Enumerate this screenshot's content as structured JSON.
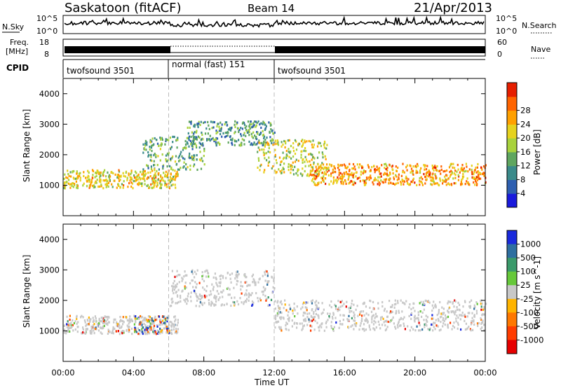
{
  "header": {
    "station": "Saskatoon (fitACF)",
    "beam": "Beam 14",
    "date": "21/Apr/2013"
  },
  "noise_panel": {
    "left_label": "N.Sky",
    "right_label": "N.Search",
    "left_ticks": [
      "10^5",
      "10^0"
    ],
    "right_ticks": [
      "10^5",
      "10^0"
    ]
  },
  "freq_panel": {
    "left_label_line1": "Freq.",
    "left_label_line2": "[MHz]",
    "left_ticks": [
      "18",
      "8"
    ],
    "right_label": "Nave",
    "right_ticks": [
      "60",
      "0"
    ]
  },
  "cpid_panel": {
    "label": "CPID",
    "segments": [
      {
        "name": "twofsound 3501",
        "start": 0,
        "end": 6
      },
      {
        "name": "normal (fast) 151",
        "start": 6,
        "end": 12
      },
      {
        "name": "twofsound 3501",
        "start": 12,
        "end": 24
      }
    ]
  },
  "chart_data": [
    {
      "type": "heatmap",
      "quantity": "Power",
      "xlabel": "Time UT",
      "ylabel": "Slant Range [km]",
      "xlim": [
        0,
        24
      ],
      "ylim": [
        0,
        4500
      ],
      "x_ticks": [
        "00:00",
        "04:00",
        "08:00",
        "12:00",
        "16:00",
        "20:00",
        "00:00"
      ],
      "y_ticks": [
        1000,
        2000,
        3000,
        4000
      ],
      "colorbar": {
        "label": "Power [dB]",
        "ticks": [
          "4",
          "8",
          "12",
          "16",
          "20",
          "24",
          "28"
        ],
        "colors": [
          "#1a1adc",
          "#2e5fb0",
          "#3a8a8a",
          "#5fa65f",
          "#a8d23c",
          "#e6d21e",
          "#ffa000",
          "#ff6400",
          "#e61e00"
        ]
      },
      "features": [
        {
          "name": "near-range band (00-06 UT)",
          "t_start": 0,
          "t_end": 6.5,
          "range_km": [
            900,
            1500
          ],
          "power_db": 20
        },
        {
          "name": "rising edge (05-08 UT)",
          "t_start": 4.5,
          "t_end": 8,
          "range_km": [
            1500,
            2600
          ],
          "power_db": 12
        },
        {
          "name": "far-range arc (07-12 UT)",
          "t_start": 7,
          "t_end": 12,
          "range_km": [
            2300,
            3100
          ],
          "power_db": 10
        },
        {
          "name": "descending edge (11-15 UT)",
          "t_start": 11,
          "t_end": 15,
          "range_km": [
            1300,
            2500
          ],
          "power_db": 18
        },
        {
          "name": "near-range band (14-24 UT)",
          "t_start": 14,
          "t_end": 24,
          "range_km": [
            1000,
            1700
          ],
          "power_db": 24
        }
      ]
    },
    {
      "type": "heatmap",
      "quantity": "Velocity",
      "xlabel": "Time UT",
      "ylabel": "Slant Range [km]",
      "xlim": [
        0,
        24
      ],
      "ylim": [
        0,
        4500
      ],
      "x_ticks": [
        "00:00",
        "04:00",
        "08:00",
        "12:00",
        "16:00",
        "20:00",
        "00:00"
      ],
      "y_ticks": [
        1000,
        2000,
        3000,
        4000
      ],
      "colorbar": {
        "label": "Velocity [m s^-1]",
        "ticks": [
          "1000",
          "500",
          "100",
          "25",
          "-25",
          "-100",
          "-500",
          "-1000"
        ],
        "colors": [
          "#1a2adc",
          "#2e6fa0",
          "#3a9a6a",
          "#66c83a",
          "#c8c8c8",
          "#ffb400",
          "#ff7800",
          "#ff3c00",
          "#e60000"
        ]
      },
      "features": [
        {
          "name": "ground scatter band (00-06 UT)",
          "t_start": 0,
          "t_end": 6.5,
          "range_km": [
            900,
            1500
          ],
          "velocity": 0
        },
        {
          "name": "mixed-velocity patch (04-06 UT)",
          "t_start": 4,
          "t_end": 6,
          "range_km": [
            900,
            1500
          ],
          "velocity": 500
        },
        {
          "name": "ground scatter arc (06-12 UT)",
          "t_start": 6,
          "t_end": 12,
          "range_km": [
            1800,
            3000
          ],
          "velocity": 0
        },
        {
          "name": "ground scatter band (12-24 UT)",
          "t_start": 12,
          "t_end": 24,
          "range_km": [
            1000,
            2000
          ],
          "velocity": 0
        }
      ]
    }
  ]
}
